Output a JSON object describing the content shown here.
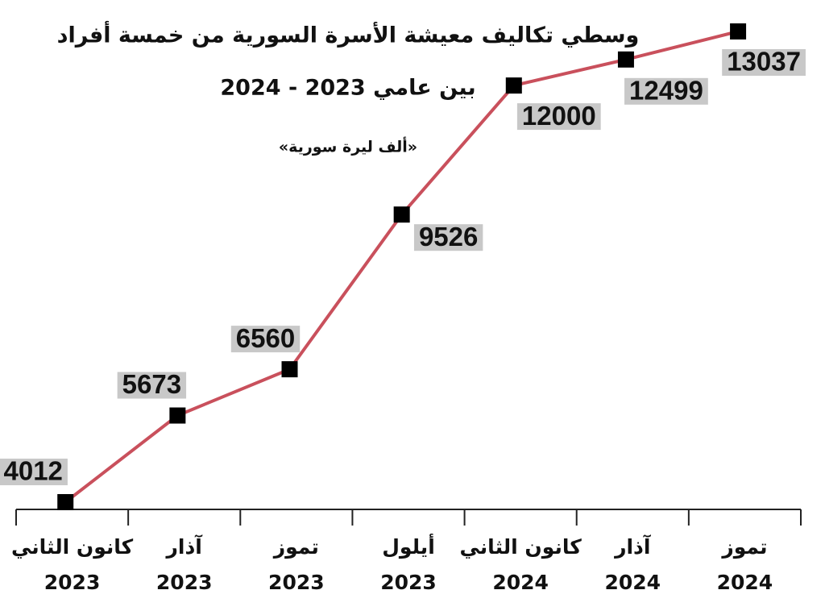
{
  "chart_data": {
    "type": "line",
    "title": "وسطي تكاليف معيشة الأسرة السورية من خمسة أفراد",
    "subtitle": "بين عامي 2023 - 2024",
    "unit_label": "«ألف ليرة سورية»",
    "categories": [
      [
        "كانون الثاني",
        "2023"
      ],
      [
        "آذار",
        "2023"
      ],
      [
        "تموز",
        "2023"
      ],
      [
        "أيلول",
        "2023"
      ],
      [
        "كانون الثاني",
        "2024"
      ],
      [
        "آذار",
        "2024"
      ],
      [
        "تموز",
        "2024"
      ]
    ],
    "values": [
      4012,
      5673,
      6560,
      9526,
      12000,
      12499,
      13037
    ],
    "color": "#c9505c",
    "marker_color": "#000000",
    "label_background": "#c8c8c8"
  }
}
